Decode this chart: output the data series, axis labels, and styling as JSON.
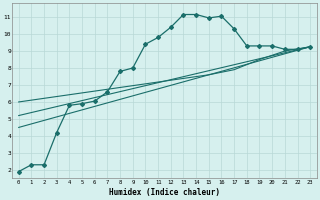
{
  "xlabel": "Humidex (Indice chaleur)",
  "bg_color": "#d6f0ee",
  "grid_color": "#b8d8d6",
  "line_color": "#1a6e6a",
  "xlim": [
    -0.5,
    23.5
  ],
  "ylim": [
    1.5,
    11.8
  ],
  "xtick_labels": [
    "0",
    "1",
    "2",
    "3",
    "4",
    "5",
    "6",
    "7",
    "8",
    "9",
    "10",
    "11",
    "12",
    "13",
    "14",
    "15",
    "16",
    "17",
    "18",
    "19",
    "20",
    "21",
    "22",
    "23"
  ],
  "xtick_vals": [
    0,
    1,
    2,
    3,
    4,
    5,
    6,
    7,
    8,
    9,
    10,
    11,
    12,
    13,
    14,
    15,
    16,
    17,
    18,
    19,
    20,
    21,
    22,
    23
  ],
  "ytick_vals": [
    2,
    3,
    4,
    5,
    6,
    7,
    8,
    9,
    10,
    11
  ],
  "main_x": [
    0,
    1,
    2,
    3,
    4,
    5,
    6,
    7,
    8,
    9,
    10,
    11,
    12,
    13,
    14,
    15,
    16,
    17,
    18,
    19,
    20,
    21,
    22,
    23
  ],
  "main_y": [
    1.9,
    2.3,
    2.3,
    4.2,
    5.8,
    5.9,
    6.05,
    6.6,
    7.8,
    8.0,
    9.4,
    9.8,
    10.4,
    11.15,
    11.15,
    10.95,
    11.05,
    10.3,
    9.3,
    9.3,
    9.3,
    9.1,
    9.1,
    9.25
  ],
  "line2_x": [
    0,
    23
  ],
  "line2_y": [
    4.5,
    9.25
  ],
  "line3_x": [
    0,
    23
  ],
  "line3_y": [
    5.2,
    9.25
  ],
  "line4_x": [
    0,
    15,
    17,
    19,
    21,
    23
  ],
  "line4_y": [
    6.0,
    7.6,
    7.9,
    8.5,
    9.0,
    9.25
  ]
}
